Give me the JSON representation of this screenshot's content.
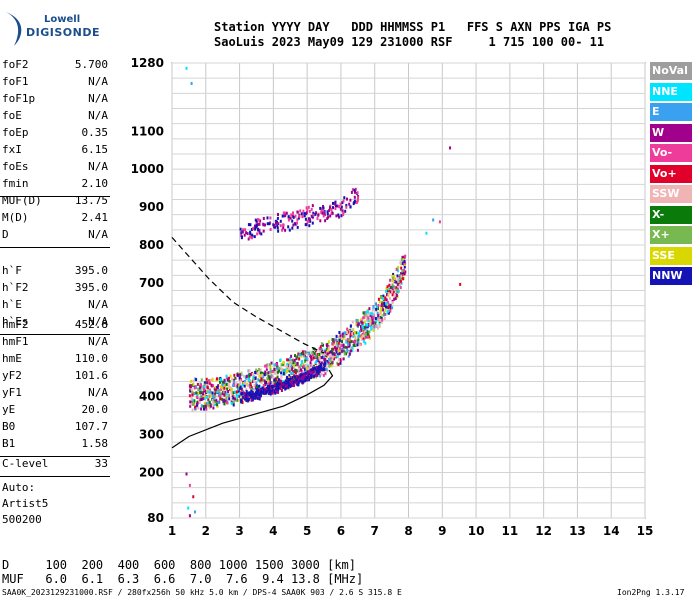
{
  "logo": {
    "line1": "Lowell",
    "line2": "DIGISONDE"
  },
  "header": {
    "line1": "Station YYYY DAY   DDD HHMMSS P1   FFS S AXN PPS IGA PS",
    "line2": "SaoLuis 2023 May09 129 231000 RSF     1 715 100 00- 11"
  },
  "params": {
    "group1": [
      {
        "k": "foF2",
        "v": "5.700"
      },
      {
        "k": "foF1",
        "v": "N/A"
      },
      {
        "k": "foF1p",
        "v": "N/A"
      },
      {
        "k": "foE",
        "v": "N/A"
      },
      {
        "k": "foEp",
        "v": "0.35"
      },
      {
        "k": "fxI",
        "v": "6.15"
      },
      {
        "k": "foEs",
        "v": "N/A"
      },
      {
        "k": "fmin",
        "v": "2.10"
      }
    ],
    "group2": [
      {
        "k": "MUF(D)",
        "v": "13.75"
      },
      {
        "k": "M(D)",
        "v": "2.41"
      },
      {
        "k": "D",
        "v": "N/A"
      }
    ],
    "group3": [
      {
        "k": "h`F",
        "v": "395.0"
      },
      {
        "k": "h`F2",
        "v": "395.0"
      },
      {
        "k": "h`E",
        "v": "N/A"
      },
      {
        "k": "h`Es",
        "v": "N/A"
      }
    ],
    "group4": [
      {
        "k": "hmF2",
        "v": "452.8"
      },
      {
        "k": "hmF1",
        "v": "N/A"
      },
      {
        "k": "hmE",
        "v": "110.0"
      },
      {
        "k": "yF2",
        "v": "101.6"
      },
      {
        "k": "yF1",
        "v": "N/A"
      },
      {
        "k": "yE",
        "v": "20.0"
      },
      {
        "k": "B0",
        "v": "107.7"
      },
      {
        "k": "B1",
        "v": "1.58"
      }
    ],
    "group5": [
      {
        "k": "C-level",
        "v": "33"
      }
    ],
    "auto": [
      "Auto:",
      "Artist5",
      "500200"
    ]
  },
  "legend": [
    {
      "label": "NoVal",
      "color": "#9e9e9e"
    },
    {
      "label": "NNE",
      "color": "#00e5ff"
    },
    {
      "label": "E",
      "color": "#3aa0f0"
    },
    {
      "label": "W",
      "color": "#a0008c"
    },
    {
      "label": "Vo-",
      "color": "#ee3c9b"
    },
    {
      "label": "Vo+",
      "color": "#e0002a"
    },
    {
      "label": "SSW",
      "color": "#f0b4b4"
    },
    {
      "label": "X-",
      "color": "#0a7a0a"
    },
    {
      "label": "X+",
      "color": "#78b850"
    },
    {
      "label": "SSE",
      "color": "#d8d800"
    },
    {
      "label": "NNW",
      "color": "#1414b4"
    }
  ],
  "muf_table": {
    "line1": "D     100  200  400  600  800 1000 1500 3000 [km]",
    "line2": "MUF   6.0  6.1  6.3  6.6  7.0  7.6  9.4 13.8 [MHz]"
  },
  "footer": {
    "left": "SAA0K_2023129231000.RSF / 280fx256h 50 kHz 5.0 km / DPS-4 SAA0K 903 / 2.6 S 315.8 E",
    "right": "Ion2Png 1.3.17"
  },
  "chart_data": {
    "type": "scatter",
    "xlim": [
      1,
      15
    ],
    "ylim": [
      80,
      1280
    ],
    "x_ticks": [
      "1",
      "2",
      "3",
      "4",
      "5",
      "6",
      "7",
      "8",
      "9",
      "10",
      "11",
      "12",
      "13",
      "14",
      "15"
    ],
    "y_ticks": [
      {
        "v": 80,
        "label": "80"
      },
      {
        "v": 200,
        "label": "200"
      },
      {
        "v": 300,
        "label": "300"
      },
      {
        "v": 400,
        "label": "400"
      },
      {
        "v": 500,
        "label": "500"
      },
      {
        "v": 600,
        "label": "600"
      },
      {
        "v": 700,
        "label": "700"
      },
      {
        "v": 800,
        "label": "800"
      },
      {
        "v": 900,
        "label": "900"
      },
      {
        "v": 1000,
        "label": "1000"
      },
      {
        "v": 1100,
        "label": "1100"
      },
      {
        "v": 1280,
        "label": "1280"
      }
    ],
    "y_grid": [
      80,
      120,
      160,
      200,
      240,
      280,
      320,
      360,
      400,
      440,
      480,
      520,
      560,
      600,
      640,
      680,
      720,
      760,
      800,
      840,
      880,
      920,
      960,
      1000,
      1040,
      1080,
      1120,
      1160,
      1200,
      1240,
      1280
    ],
    "grid": true,
    "profile_solid": [
      [
        1.0,
        265
      ],
      [
        1.5,
        295
      ],
      [
        2.5,
        330
      ],
      [
        3.5,
        355
      ],
      [
        4.3,
        375
      ],
      [
        5.0,
        405
      ],
      [
        5.5,
        430
      ],
      [
        5.75,
        455
      ],
      [
        5.65,
        470
      ]
    ],
    "trace_dashed": [
      [
        1.0,
        820
      ],
      [
        1.5,
        770
      ],
      [
        2.1,
        710
      ],
      [
        2.8,
        650
      ],
      [
        3.5,
        610
      ],
      [
        4.3,
        570
      ],
      [
        4.9,
        540
      ],
      [
        5.5,
        515
      ]
    ],
    "o_trace_x": [
      1.5,
      2.0,
      2.5,
      3.0,
      3.5,
      4.0,
      4.5,
      5.0,
      5.5,
      5.8,
      6.2,
      6.6,
      7.0,
      7.3,
      7.6,
      7.9
    ],
    "o_trace_y": [
      405,
      410,
      420,
      425,
      440,
      455,
      470,
      485,
      505,
      525,
      550,
      580,
      615,
      650,
      700,
      760
    ],
    "x_trace_x": [
      3.0,
      3.5,
      4.0,
      4.5,
      5.0,
      5.5
    ],
    "x_trace_y": [
      400,
      410,
      425,
      440,
      460,
      485
    ],
    "echo2_x": [
      3.0,
      3.5,
      4.0,
      4.5,
      5.0,
      5.5,
      6.0,
      6.5
    ],
    "echo2_y": [
      835,
      850,
      860,
      870,
      880,
      890,
      900,
      940
    ],
    "scattered": [
      [
        1.4,
        1270
      ],
      [
        1.55,
        1230
      ],
      [
        9.2,
        1060
      ],
      [
        8.9,
        865
      ],
      [
        9.5,
        700
      ],
      [
        8.5,
        835
      ],
      [
        8.7,
        870
      ],
      [
        1.4,
        200
      ],
      [
        1.5,
        170
      ],
      [
        1.6,
        140
      ],
      [
        1.45,
        110
      ],
      [
        1.65,
        100
      ],
      [
        1.5,
        90
      ]
    ]
  }
}
